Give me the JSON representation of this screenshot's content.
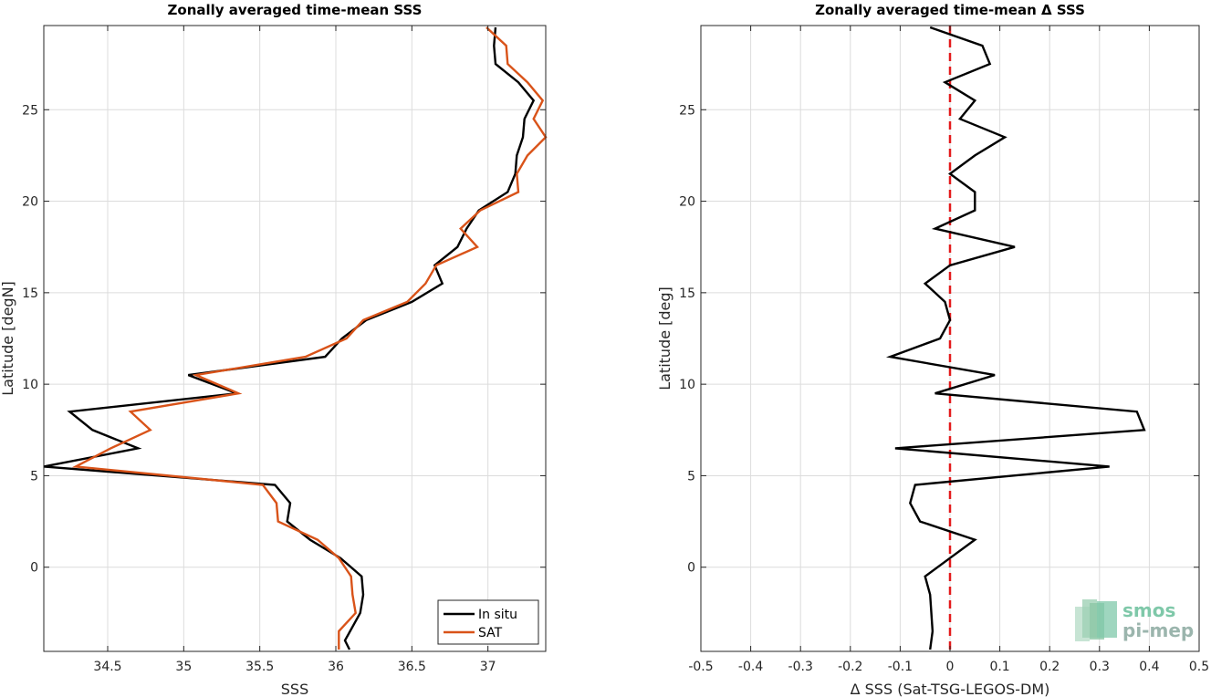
{
  "chart_data": [
    {
      "type": "line",
      "title": "Zonally averaged time-mean SSS",
      "xlabel": "SSS",
      "ylabel": "Latitude [degN]",
      "xlim": [
        34.08,
        37.38
      ],
      "ylim": [
        -4.6,
        29.6
      ],
      "xticks": [
        34.5,
        35,
        35.5,
        36,
        36.5,
        37
      ],
      "xtick_labels": [
        "34.5",
        "35",
        "35.5",
        "36",
        "36.5",
        "37"
      ],
      "yticks": [
        0,
        5,
        10,
        15,
        20,
        25
      ],
      "ytick_labels": [
        "0",
        "5",
        "10",
        "15",
        "20",
        "25"
      ],
      "grid": true,
      "legend": {
        "position": "bottom-right",
        "entries": [
          "In situ",
          "SAT"
        ]
      },
      "series": [
        {
          "name": "In situ",
          "color": "#000000",
          "points": [
            [
              36.09,
              -4.5
            ],
            [
              36.06,
              -4.0
            ],
            [
              36.16,
              -2.5
            ],
            [
              36.18,
              -1.5
            ],
            [
              36.17,
              -0.5
            ],
            [
              36.03,
              0.5
            ],
            [
              35.83,
              1.5
            ],
            [
              35.68,
              2.5
            ],
            [
              35.7,
              3.5
            ],
            [
              35.6,
              4.5
            ],
            [
              34.08,
              5.5
            ],
            [
              34.7,
              6.5
            ],
            [
              34.4,
              7.5
            ],
            [
              34.25,
              8.5
            ],
            [
              35.35,
              9.5
            ],
            [
              35.03,
              10.5
            ],
            [
              35.93,
              11.5
            ],
            [
              36.04,
              12.5
            ],
            [
              36.2,
              13.5
            ],
            [
              36.5,
              14.5
            ],
            [
              36.7,
              15.5
            ],
            [
              36.65,
              16.5
            ],
            [
              36.8,
              17.5
            ],
            [
              36.86,
              18.5
            ],
            [
              36.94,
              19.5
            ],
            [
              37.13,
              20.5
            ],
            [
              37.18,
              21.5
            ],
            [
              37.19,
              22.5
            ],
            [
              37.23,
              23.5
            ],
            [
              37.24,
              24.5
            ],
            [
              37.3,
              25.5
            ],
            [
              37.2,
              26.5
            ],
            [
              37.05,
              27.5
            ],
            [
              37.04,
              28.5
            ],
            [
              37.05,
              29.5
            ]
          ]
        },
        {
          "name": "SAT",
          "color": "#D95319",
          "points": [
            [
              36.02,
              -4.5
            ],
            [
              36.02,
              -3.5
            ],
            [
              36.13,
              -2.5
            ],
            [
              36.11,
              -1.5
            ],
            [
              36.1,
              -0.5
            ],
            [
              36.02,
              0.5
            ],
            [
              35.88,
              1.5
            ],
            [
              35.62,
              2.5
            ],
            [
              35.61,
              3.5
            ],
            [
              35.52,
              4.5
            ],
            [
              34.29,
              5.5
            ],
            [
              34.52,
              6.5
            ],
            [
              34.78,
              7.5
            ],
            [
              34.65,
              8.5
            ],
            [
              35.36,
              9.5
            ],
            [
              35.08,
              10.5
            ],
            [
              35.8,
              11.5
            ],
            [
              36.07,
              12.5
            ],
            [
              36.18,
              13.5
            ],
            [
              36.47,
              14.5
            ],
            [
              36.59,
              15.5
            ],
            [
              36.66,
              16.5
            ],
            [
              36.93,
              17.5
            ],
            [
              36.82,
              18.5
            ],
            [
              36.95,
              19.5
            ],
            [
              37.2,
              20.5
            ],
            [
              37.19,
              21.5
            ],
            [
              37.26,
              22.5
            ],
            [
              37.38,
              23.5
            ],
            [
              37.3,
              24.5
            ],
            [
              37.36,
              25.5
            ],
            [
              37.26,
              26.5
            ],
            [
              37.13,
              27.5
            ],
            [
              37.12,
              28.5
            ],
            [
              36.99,
              29.5
            ]
          ]
        }
      ]
    },
    {
      "type": "line",
      "title": "Zonally averaged time-mean Δ SSS",
      "xlabel": "Δ SSS (Sat-TSG-LEGOS-DM)",
      "ylabel": "Latitude [deg]",
      "xlim": [
        -0.5,
        0.5
      ],
      "ylim": [
        -4.6,
        29.6
      ],
      "xticks": [
        -0.5,
        -0.4,
        -0.3,
        -0.2,
        -0.1,
        0,
        0.1,
        0.2,
        0.3,
        0.4,
        0.5
      ],
      "xtick_labels": [
        "-0.5",
        "-0.4",
        "-0.3",
        "-0.2",
        "-0.1",
        "0",
        "0.1",
        "0.2",
        "0.3",
        "0.4",
        "0.5"
      ],
      "yticks": [
        0,
        5,
        10,
        15,
        20,
        25
      ],
      "ytick_labels": [
        "0",
        "5",
        "10",
        "15",
        "20",
        "25"
      ],
      "grid": true,
      "reference_line": {
        "x": 0,
        "color": "#E31A1C",
        "style": "dashed"
      },
      "series": [
        {
          "name": "",
          "color": "#000000",
          "points": [
            [
              -0.04,
              -4.5
            ],
            [
              -0.035,
              -3.5
            ],
            [
              -0.04,
              -1.5
            ],
            [
              -0.05,
              -0.5
            ],
            [
              0.0,
              0.5
            ],
            [
              0.05,
              1.5
            ],
            [
              -0.06,
              2.5
            ],
            [
              -0.08,
              3.5
            ],
            [
              -0.07,
              4.5
            ],
            [
              0.32,
              5.5
            ],
            [
              -0.11,
              6.5
            ],
            [
              0.39,
              7.5
            ],
            [
              0.375,
              8.5
            ],
            [
              -0.03,
              9.5
            ],
            [
              0.09,
              10.5
            ],
            [
              -0.12,
              11.5
            ],
            [
              -0.02,
              12.5
            ],
            [
              0.0,
              13.5
            ],
            [
              -0.01,
              14.5
            ],
            [
              -0.05,
              15.5
            ],
            [
              0.0,
              16.5
            ],
            [
              0.13,
              17.5
            ],
            [
              -0.03,
              18.5
            ],
            [
              0.05,
              19.5
            ],
            [
              0.05,
              20.5
            ],
            [
              0.0,
              21.5
            ],
            [
              0.05,
              22.5
            ],
            [
              0.11,
              23.5
            ],
            [
              0.02,
              24.5
            ],
            [
              0.05,
              25.5
            ],
            [
              -0.01,
              26.5
            ],
            [
              0.08,
              27.5
            ],
            [
              0.065,
              28.5
            ],
            [
              -0.04,
              29.5
            ]
          ]
        }
      ]
    }
  ],
  "logo": {
    "line1": "smos",
    "line2": "pi-mep",
    "color_top": "#7FC8A9",
    "color_bottom": "#9BB5AD"
  }
}
